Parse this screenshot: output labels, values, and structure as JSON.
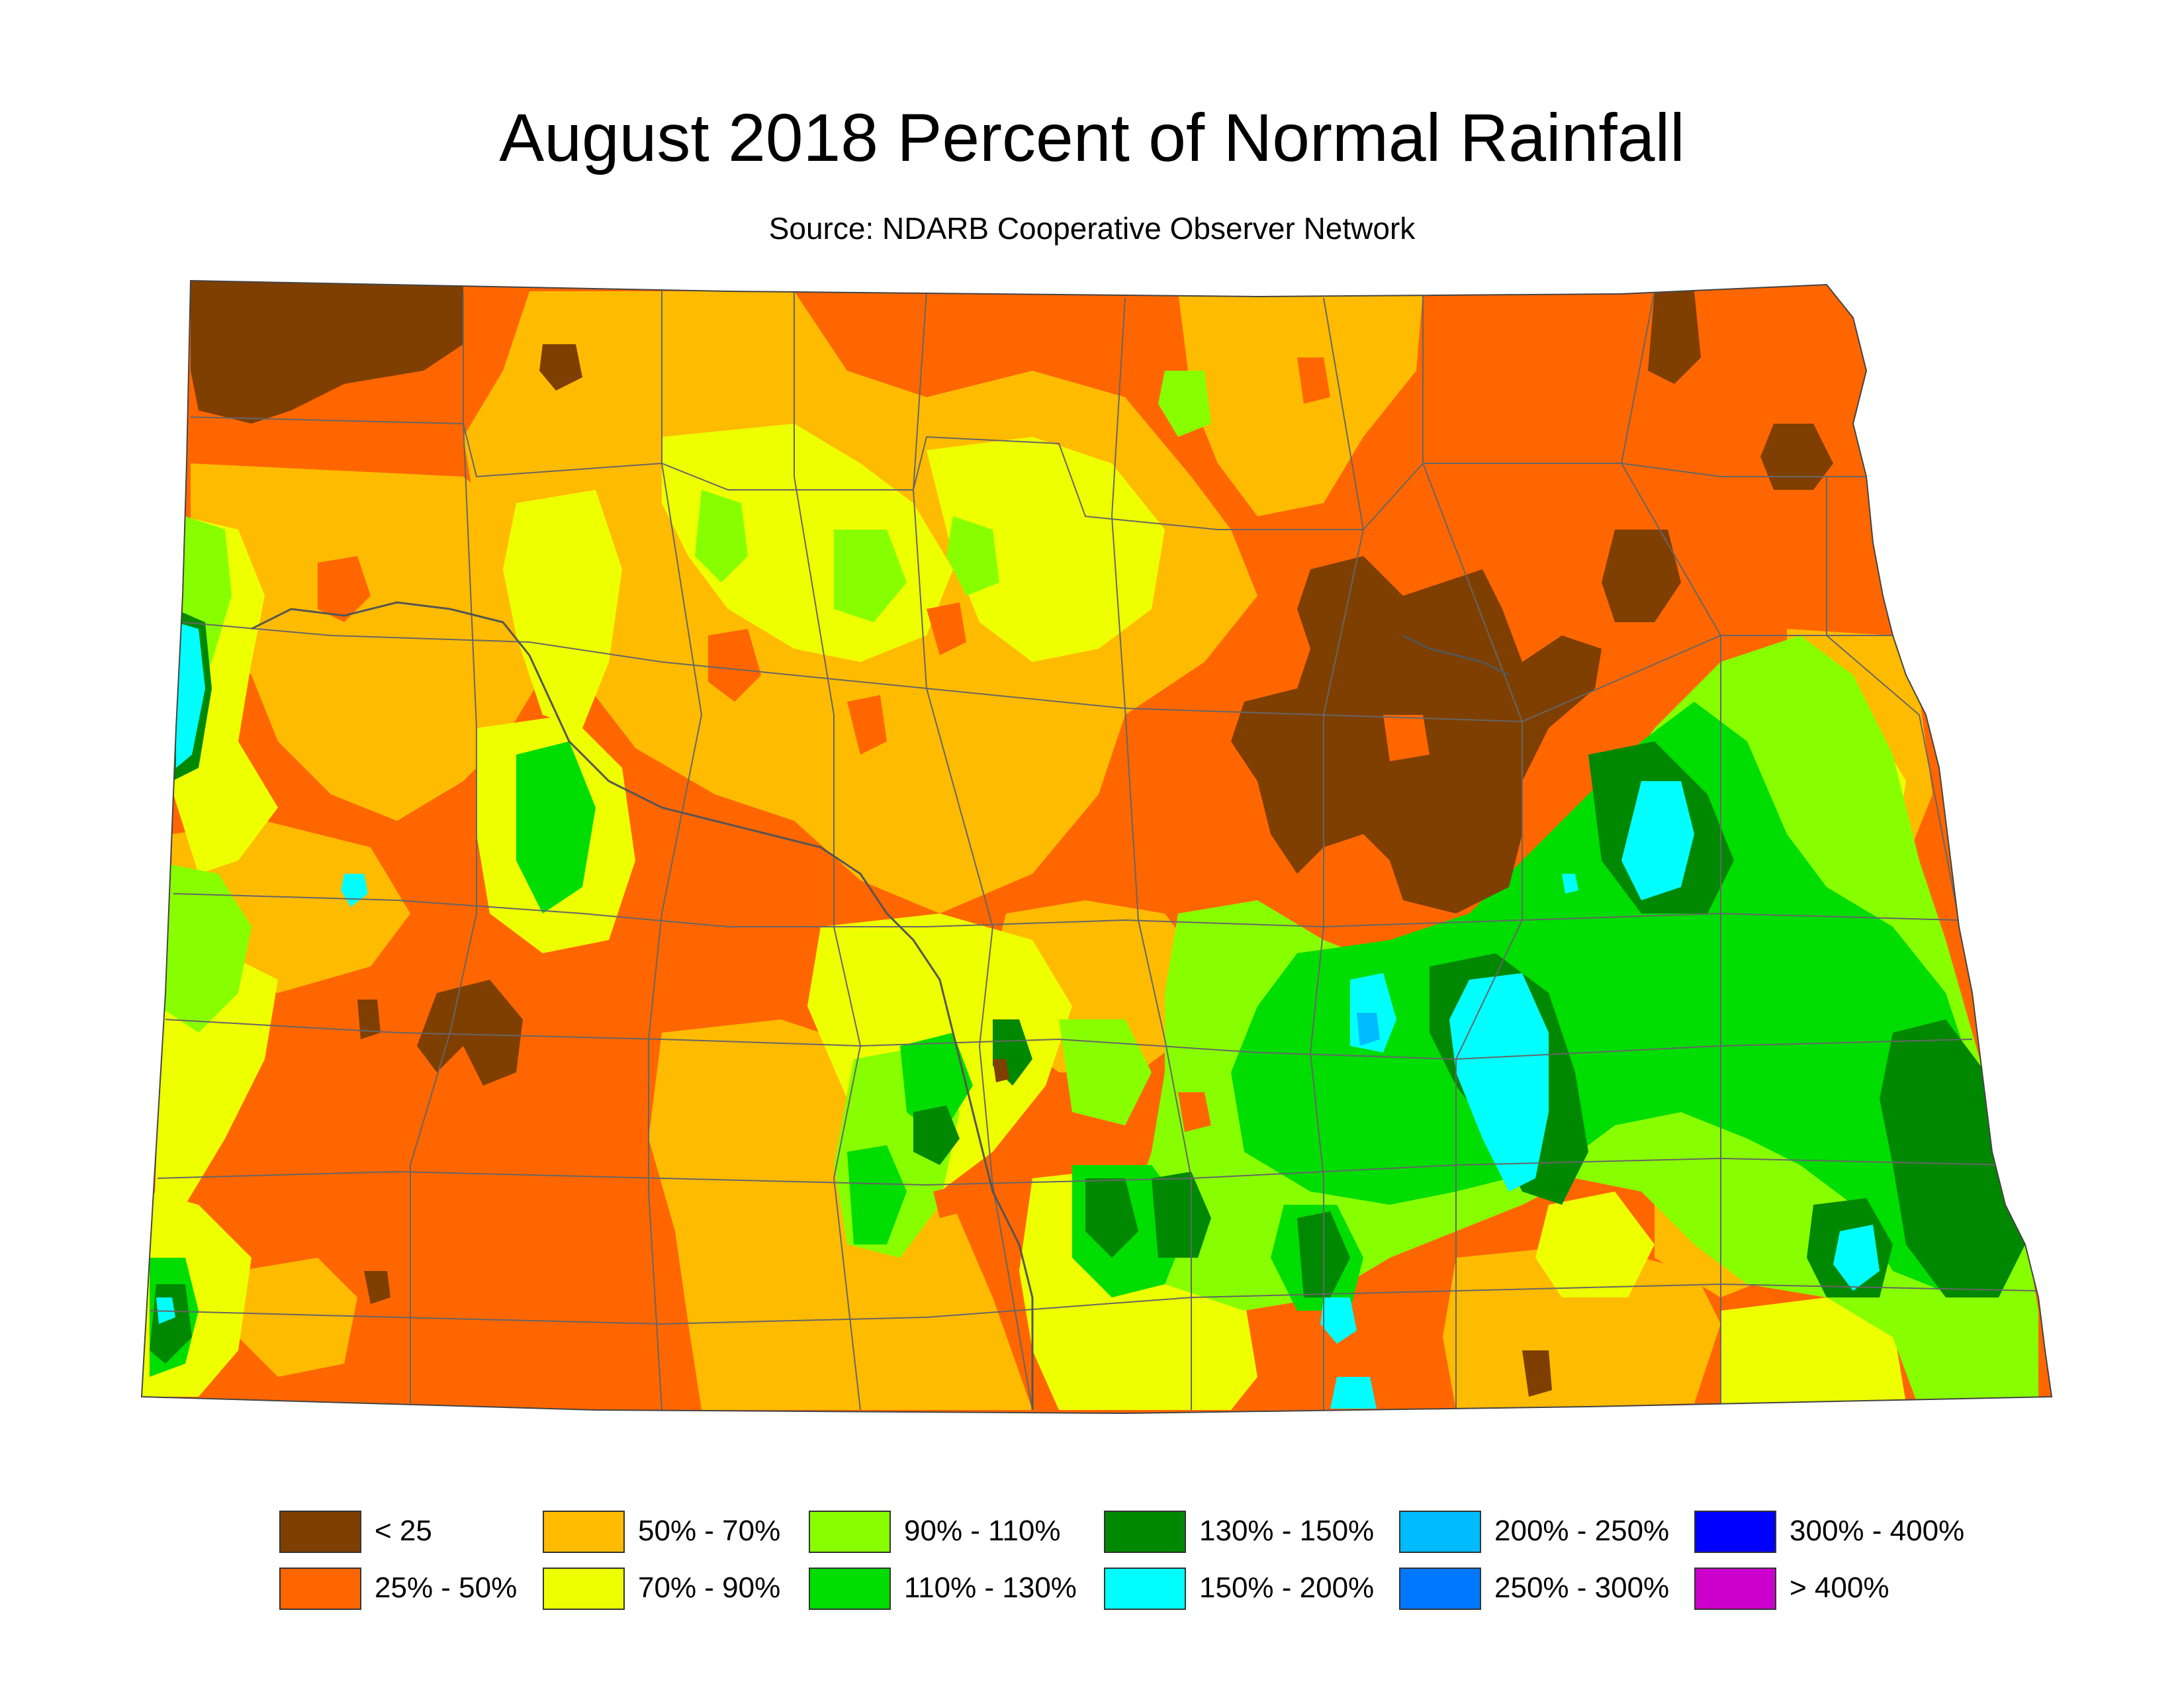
{
  "title": "August 2018 Percent of Normal Rainfall",
  "subtitle": "Source: NDARB Cooperative Observer Network",
  "colors": {
    "lt25": "#7f3f00",
    "p25_50": "#ff6600",
    "p50_70": "#ffbb00",
    "p70_90": "#eeff00",
    "p90_110": "#88ff00",
    "p110_130": "#00dd00",
    "p130_150": "#008800",
    "p150_200": "#00ffff",
    "p200_250": "#00bbff",
    "p250_300": "#0077ff",
    "p300_400": "#0000ff",
    "gt400": "#cc00cc"
  },
  "legend": [
    {
      "label": "< 25",
      "color": "#7f3f00"
    },
    {
      "label": "25% - 50%",
      "color": "#ff6600"
    },
    {
      "label": "50% - 70%",
      "color": "#ffbb00"
    },
    {
      "label": "70% - 90%",
      "color": "#eeff00"
    },
    {
      "label": "90% - 110%",
      "color": "#88ff00"
    },
    {
      "label": "110% - 130%",
      "color": "#00dd00"
    },
    {
      "label": "130% - 150%",
      "color": "#008800"
    },
    {
      "label": "150% - 200%",
      "color": "#00ffff"
    },
    {
      "label": "200% - 250%",
      "color": "#00bbff"
    },
    {
      "label": "250% - 300%",
      "color": "#0077ff"
    },
    {
      "label": "300% - 400%",
      "color": "#0000ff"
    },
    {
      "label": "> 400%",
      "color": "#cc00cc"
    }
  ]
}
